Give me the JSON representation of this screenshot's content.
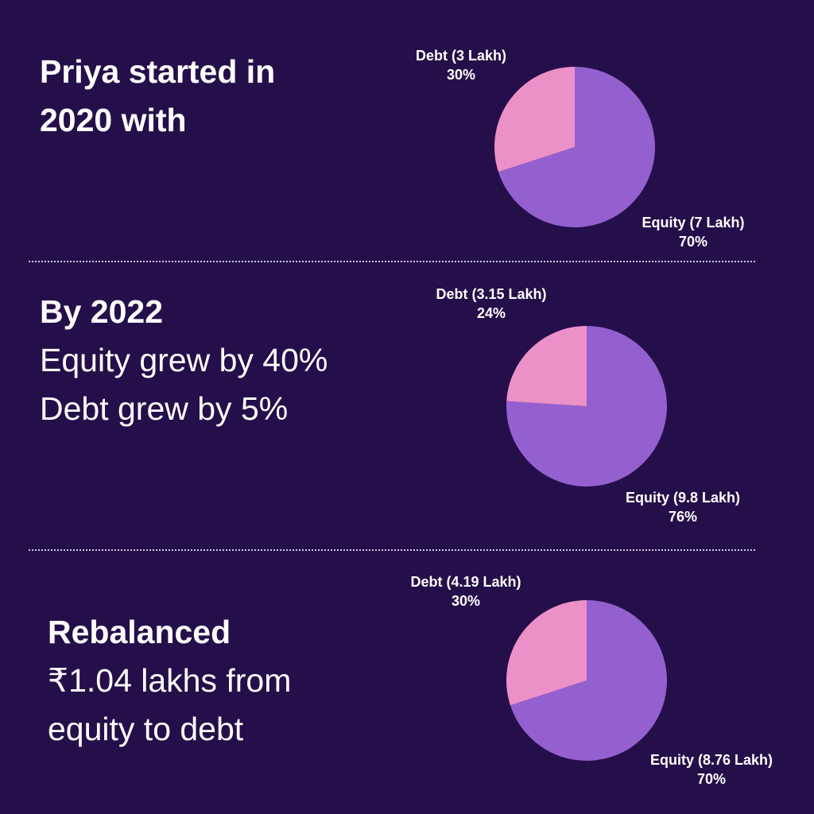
{
  "colors": {
    "background": "#250f4a",
    "equity": "#9460d0",
    "debt": "#ec91c8"
  },
  "sections": [
    {
      "heading_lines": [
        "Priya started in",
        "2020 with"
      ],
      "body_lines": [],
      "chart": {
        "type": "pie",
        "slices": [
          {
            "label": "Equity (7 Lakh)",
            "percent_label": "70%",
            "value": 7,
            "share": 70
          },
          {
            "label": "Debt (3 Lakh)",
            "percent_label": "30%",
            "value": 3,
            "share": 30
          }
        ]
      }
    },
    {
      "heading_lines": [
        "By 2022"
      ],
      "body_lines": [
        "Equity grew by 40%",
        "Debt grew by 5%"
      ],
      "chart": {
        "type": "pie",
        "slices": [
          {
            "label": "Equity (9.8 Lakh)",
            "percent_label": "76%",
            "value": 9.8,
            "share": 76
          },
          {
            "label": "Debt (3.15 Lakh)",
            "percent_label": "24%",
            "value": 3.15,
            "share": 24
          }
        ]
      }
    },
    {
      "heading_lines": [
        "Rebalanced"
      ],
      "body_lines": [
        "₹1.04 lakhs from",
        "equity to debt"
      ],
      "chart": {
        "type": "pie",
        "slices": [
          {
            "label": "Equity (8.76 Lakh)",
            "percent_label": "70%",
            "value": 8.76,
            "share": 70
          },
          {
            "label": "Debt (4.19 Lakh)",
            "percent_label": "30%",
            "value": 4.19,
            "share": 30
          }
        ]
      }
    }
  ],
  "chart_data": [
    {
      "type": "pie",
      "categories": [
        "Equity (7 Lakh)",
        "Debt (3 Lakh)"
      ],
      "values": [
        70,
        30
      ]
    },
    {
      "type": "pie",
      "categories": [
        "Equity (9.8 Lakh)",
        "Debt (3.15 Lakh)"
      ],
      "values": [
        76,
        24
      ]
    },
    {
      "type": "pie",
      "categories": [
        "Equity (8.76 Lakh)",
        "Debt (4.19 Lakh)"
      ],
      "values": [
        70,
        30
      ]
    }
  ]
}
